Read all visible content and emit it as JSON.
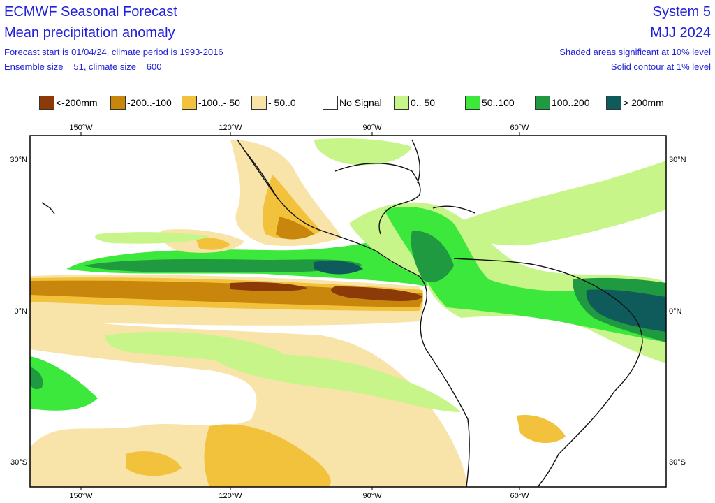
{
  "header": {
    "title": "ECMWF Seasonal Forecast",
    "subtitle": "Mean precipitation anomaly",
    "forecast_info": "Forecast start is 01/04/24, climate period is 1993-2016",
    "ensemble_info": "Ensemble size = 51, climate size = 600",
    "system": "System 5",
    "period": "MJJ 2024",
    "significance_note": "Shaded areas significant at 10% level",
    "contour_note": "Solid contour at 1% level"
  },
  "legend": [
    {
      "label": "<-200mm",
      "color": "#8b3a08"
    },
    {
      "label": "-200..-100",
      "color": "#c8860c"
    },
    {
      "label": "-100..- 50",
      "color": "#f3c23c"
    },
    {
      "label": "- 50..0",
      "color": "#f8e3a8"
    },
    {
      "label": "No Signal",
      "color": "#ffffff"
    },
    {
      "label": "0.. 50",
      "color": "#c8f58a"
    },
    {
      "label": "50..100",
      "color": "#3de83d"
    },
    {
      "label": "100..200",
      "color": "#1f9a40"
    },
    {
      "label": "> 200mm",
      "color": "#0f5a5a"
    }
  ],
  "axes": {
    "lon_labels": [
      "150°W",
      "120°W",
      "90°W",
      "60°W"
    ],
    "lat_labels_left": [
      "30°N",
      "0°N",
      "30°S"
    ],
    "lat_labels_right": [
      "30°N",
      "0°N",
      "30°S"
    ]
  }
}
